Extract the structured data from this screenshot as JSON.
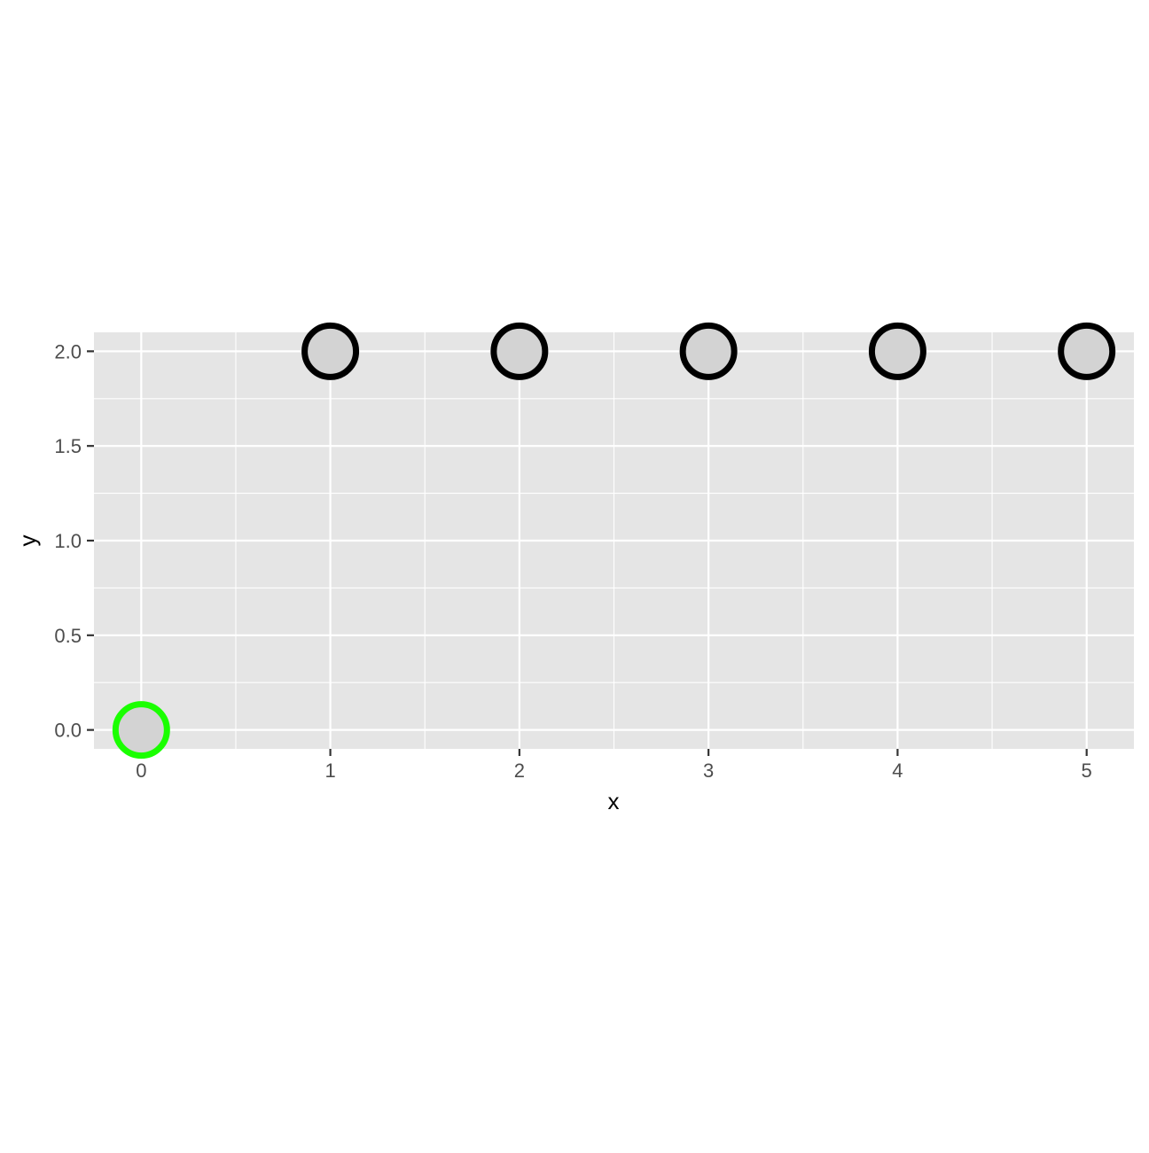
{
  "chart_data": {
    "type": "scatter",
    "title": "",
    "xlabel": "x",
    "ylabel": "y",
    "xlim": [
      -0.25,
      5.25
    ],
    "ylim": [
      -0.1,
      2.1
    ],
    "x_ticks": [
      0,
      1,
      2,
      3,
      4,
      5
    ],
    "x_tick_labels": [
      "0",
      "1",
      "2",
      "3",
      "4",
      "5"
    ],
    "y_ticks": [
      0.0,
      0.5,
      1.0,
      1.5,
      2.0
    ],
    "y_tick_labels": [
      "0.0",
      "0.5",
      "1.0",
      "1.5",
      "2.0"
    ],
    "grid": true,
    "legend": "none",
    "panel_background": "#e5e5e5",
    "grid_color": "#ffffff",
    "point_fill": "#d3d3d3",
    "points": [
      {
        "x": 0,
        "y": 0,
        "stroke": "#1aff00"
      },
      {
        "x": 1,
        "y": 2,
        "stroke": "#000000"
      },
      {
        "x": 2,
        "y": 2,
        "stroke": "#000000"
      },
      {
        "x": 3,
        "y": 2,
        "stroke": "#000000"
      },
      {
        "x": 4,
        "y": 2,
        "stroke": "#000000"
      },
      {
        "x": 5,
        "y": 2,
        "stroke": "#000000"
      }
    ]
  }
}
